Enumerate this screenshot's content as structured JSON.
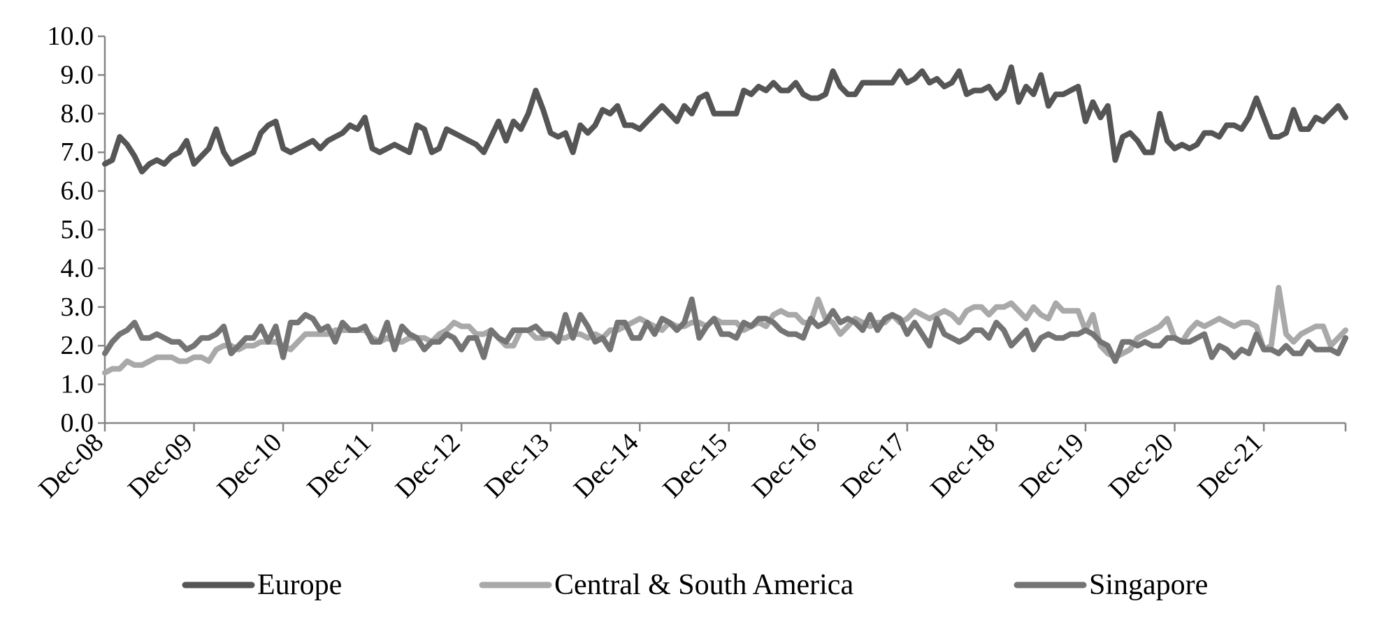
{
  "chart_data": {
    "type": "line",
    "title": "",
    "xlabel": "",
    "ylabel": "",
    "ylim": [
      0,
      10
    ],
    "y_ticks": [
      "0.0",
      "1.0",
      "2.0",
      "3.0",
      "4.0",
      "5.0",
      "6.0",
      "7.0",
      "8.0",
      "9.0",
      "10.0"
    ],
    "x_tick_labels": [
      "Dec-08",
      "Dec-09",
      "Dec-10",
      "Dec-11",
      "Dec-12",
      "Dec-13",
      "Dec-14",
      "Dec-15",
      "Dec-16",
      "Dec-17",
      "Dec-18",
      "Dec-19",
      "Dec-20",
      "Dec-21"
    ],
    "x_start": "Dec-08",
    "frequency": "monthly",
    "grid": false,
    "legend_position": "bottom",
    "series": [
      {
        "name": "Europe",
        "color": "#555555",
        "values": [
          6.7,
          6.8,
          7.4,
          7.2,
          6.9,
          6.5,
          6.7,
          6.8,
          6.7,
          6.9,
          7.0,
          7.3,
          6.7,
          6.9,
          7.1,
          7.6,
          7.0,
          6.7,
          6.8,
          6.9,
          7.0,
          7.5,
          7.7,
          7.8,
          7.1,
          7.0,
          7.1,
          7.2,
          7.3,
          7.1,
          7.3,
          7.4,
          7.5,
          7.7,
          7.6,
          7.9,
          7.1,
          7.0,
          7.1,
          7.2,
          7.1,
          7.0,
          7.7,
          7.6,
          7.0,
          7.1,
          7.6,
          7.5,
          7.4,
          7.3,
          7.2,
          7.0,
          7.4,
          7.8,
          7.3,
          7.8,
          7.6,
          8.0,
          8.6,
          8.1,
          7.5,
          7.4,
          7.5,
          7.0,
          7.7,
          7.5,
          7.7,
          8.1,
          8.0,
          8.2,
          7.7,
          7.7,
          7.6,
          7.8,
          8.0,
          8.2,
          8.0,
          7.8,
          8.2,
          8.0,
          8.4,
          8.5,
          8.0,
          8.0,
          8.0,
          8.0,
          8.6,
          8.5,
          8.7,
          8.6,
          8.8,
          8.6,
          8.6,
          8.8,
          8.5,
          8.4,
          8.4,
          8.5,
          9.1,
          8.7,
          8.5,
          8.5,
          8.8,
          8.8,
          8.8,
          8.8,
          8.8,
          9.1,
          8.8,
          8.9,
          9.1,
          8.8,
          8.9,
          8.7,
          8.8,
          9.1,
          8.5,
          8.6,
          8.6,
          8.7,
          8.4,
          8.6,
          9.2,
          8.3,
          8.7,
          8.5,
          9.0,
          8.2,
          8.5,
          8.5,
          8.6,
          8.7,
          7.8,
          8.3,
          7.9,
          8.2,
          6.8,
          7.4,
          7.5,
          7.3,
          7.0,
          7.0,
          8.0,
          7.3,
          7.1,
          7.2,
          7.1,
          7.2,
          7.5,
          7.5,
          7.4,
          7.7,
          7.7,
          7.6,
          7.9,
          8.4,
          7.9,
          7.4,
          7.4,
          7.5,
          8.1,
          7.6,
          7.6,
          7.9,
          7.8,
          8.0,
          8.2,
          7.9
        ]
      },
      {
        "name": "Central & South America",
        "color": "#a9a9a9",
        "values": [
          1.3,
          1.4,
          1.4,
          1.6,
          1.5,
          1.5,
          1.6,
          1.7,
          1.7,
          1.7,
          1.6,
          1.6,
          1.7,
          1.7,
          1.6,
          1.9,
          2.0,
          2.0,
          1.9,
          2.0,
          2.0,
          2.1,
          2.1,
          2.1,
          2.0,
          1.9,
          2.1,
          2.3,
          2.3,
          2.3,
          2.3,
          2.4,
          2.4,
          2.4,
          2.4,
          2.4,
          2.2,
          2.1,
          2.2,
          2.1,
          2.1,
          2.2,
          2.2,
          2.2,
          2.1,
          2.3,
          2.4,
          2.6,
          2.5,
          2.5,
          2.3,
          2.3,
          2.4,
          2.2,
          2.0,
          2.0,
          2.4,
          2.4,
          2.2,
          2.2,
          2.3,
          2.2,
          2.2,
          2.3,
          2.3,
          2.2,
          2.3,
          2.2,
          2.4,
          2.4,
          2.5,
          2.6,
          2.7,
          2.6,
          2.5,
          2.4,
          2.6,
          2.5,
          2.5,
          2.6,
          2.6,
          2.5,
          2.7,
          2.6,
          2.6,
          2.6,
          2.4,
          2.5,
          2.6,
          2.5,
          2.8,
          2.9,
          2.8,
          2.8,
          2.6,
          2.6,
          3.2,
          2.7,
          2.6,
          2.3,
          2.5,
          2.7,
          2.6,
          2.5,
          2.6,
          2.6,
          2.8,
          2.6,
          2.7,
          2.9,
          2.8,
          2.7,
          2.8,
          2.9,
          2.8,
          2.6,
          2.9,
          3.0,
          3.0,
          2.8,
          3.0,
          3.0,
          3.1,
          2.9,
          2.7,
          3.0,
          2.8,
          2.7,
          3.1,
          2.9,
          2.9,
          2.9,
          2.4,
          2.8,
          2.0,
          1.8,
          1.7,
          1.8,
          1.9,
          2.2,
          2.3,
          2.4,
          2.5,
          2.7,
          2.2,
          2.1,
          2.4,
          2.6,
          2.5,
          2.6,
          2.7,
          2.6,
          2.5,
          2.6,
          2.6,
          2.5,
          1.9,
          2.0,
          3.5,
          2.3,
          2.1,
          2.3,
          2.4,
          2.5,
          2.5,
          2.0,
          2.2,
          2.4
        ]
      },
      {
        "name": "Singapore",
        "color": "#747474",
        "values": [
          1.8,
          2.1,
          2.3,
          2.4,
          2.6,
          2.2,
          2.2,
          2.3,
          2.2,
          2.1,
          2.1,
          1.9,
          2.0,
          2.2,
          2.2,
          2.3,
          2.5,
          1.8,
          2.0,
          2.2,
          2.2,
          2.5,
          2.1,
          2.5,
          1.7,
          2.6,
          2.6,
          2.8,
          2.7,
          2.4,
          2.5,
          2.1,
          2.6,
          2.4,
          2.4,
          2.5,
          2.1,
          2.1,
          2.6,
          1.9,
          2.5,
          2.3,
          2.2,
          1.9,
          2.1,
          2.1,
          2.3,
          2.2,
          1.9,
          2.2,
          2.2,
          1.7,
          2.4,
          2.2,
          2.1,
          2.4,
          2.4,
          2.4,
          2.5,
          2.3,
          2.3,
          2.1,
          2.8,
          2.2,
          2.8,
          2.5,
          2.1,
          2.2,
          1.9,
          2.6,
          2.6,
          2.2,
          2.2,
          2.6,
          2.3,
          2.7,
          2.6,
          2.4,
          2.6,
          3.2,
          2.2,
          2.5,
          2.7,
          2.3,
          2.3,
          2.2,
          2.6,
          2.5,
          2.7,
          2.7,
          2.6,
          2.4,
          2.3,
          2.3,
          2.2,
          2.7,
          2.5,
          2.6,
          2.9,
          2.6,
          2.7,
          2.6,
          2.4,
          2.8,
          2.4,
          2.7,
          2.8,
          2.7,
          2.3,
          2.6,
          2.3,
          2.0,
          2.7,
          2.3,
          2.2,
          2.1,
          2.2,
          2.4,
          2.4,
          2.2,
          2.6,
          2.4,
          2.0,
          2.2,
          2.4,
          1.9,
          2.2,
          2.3,
          2.2,
          2.2,
          2.3,
          2.3,
          2.4,
          2.3,
          2.1,
          2.0,
          1.6,
          2.1,
          2.1,
          2.0,
          2.1,
          2.0,
          2.0,
          2.2,
          2.2,
          2.1,
          2.1,
          2.2,
          2.3,
          1.7,
          2.0,
          1.9,
          1.7,
          1.9,
          1.8,
          2.3,
          1.9,
          1.9,
          1.8,
          2.0,
          1.8,
          1.8,
          2.1,
          1.9,
          1.9,
          1.9,
          1.8,
          2.2
        ]
      }
    ]
  }
}
